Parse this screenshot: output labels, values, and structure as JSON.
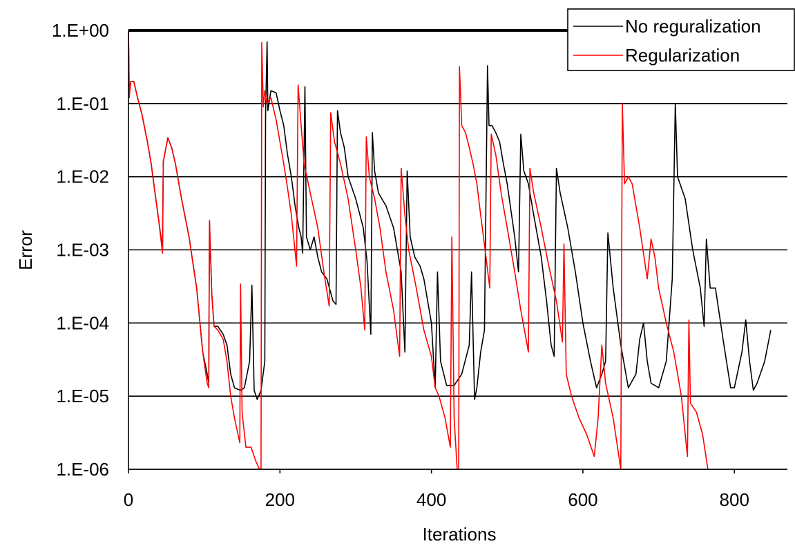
{
  "chart_data": {
    "type": "line",
    "title": "",
    "xlabel": "Iterations",
    "ylabel": "Error",
    "xlim": [
      0,
      870
    ],
    "ylim": [
      1e-06,
      1
    ],
    "yscale": "log",
    "x_ticks": [
      0,
      200,
      400,
      600,
      800
    ],
    "x_tick_labels": [
      "0",
      "200",
      "400",
      "600",
      "800"
    ],
    "y_ticks": [
      1,
      0.1,
      0.01,
      0.001,
      0.0001,
      1e-05,
      1e-06
    ],
    "y_tick_labels": [
      "1.E+00",
      "1.E-01",
      "1.E-02",
      "1.E-03",
      "1.E-04",
      "1.E-05",
      "1.E-06"
    ],
    "grid": "horizontal",
    "legend_position": "top-right",
    "colors": {
      "no_regularization": "#000000",
      "regularization": "#ff0000",
      "grid": "#000000",
      "background": "#ffffff"
    },
    "series": [
      {
        "name": "No reguralization",
        "color": "#000000",
        "points": [
          [
            0,
            1
          ],
          [
            1,
            0.15
          ],
          [
            3,
            0.2
          ],
          [
            7,
            0.2
          ],
          [
            12,
            0.12
          ],
          [
            18,
            0.07
          ],
          [
            25,
            0.03
          ],
          [
            30,
            0.015
          ],
          [
            35,
            0.006
          ],
          [
            40,
            0.0025
          ],
          [
            45,
            0.001
          ],
          [
            46,
            0.016
          ],
          [
            52,
            0.034
          ],
          [
            57,
            0.025
          ],
          [
            62,
            0.015
          ],
          [
            70,
            0.005
          ],
          [
            80,
            0.0015
          ],
          [
            90,
            0.0003
          ],
          [
            98,
            4e-05
          ],
          [
            104,
            2e-05
          ],
          [
            106,
            1.5e-05
          ],
          [
            107,
            0.0025
          ],
          [
            110,
            0.00025
          ],
          [
            113,
            9e-05
          ],
          [
            118,
            9e-05
          ],
          [
            125,
            7e-05
          ],
          [
            130,
            5e-05
          ],
          [
            135,
            2e-05
          ],
          [
            140,
            1.3e-05
          ],
          [
            148,
            1.2e-05
          ],
          [
            153,
            1.3e-05
          ],
          [
            160,
            3e-05
          ],
          [
            163,
            0.00033
          ],
          [
            166,
            1.2e-05
          ],
          [
            170,
            9e-06
          ],
          [
            175,
            1.2e-05
          ],
          [
            180,
            3e-05
          ],
          [
            181,
            0.07
          ],
          [
            183,
            0.7
          ],
          [
            184,
            0.08
          ],
          [
            188,
            0.15
          ],
          [
            195,
            0.14
          ],
          [
            200,
            0.08
          ],
          [
            205,
            0.05
          ],
          [
            210,
            0.02
          ],
          [
            215,
            0.01
          ],
          [
            220,
            0.004
          ],
          [
            225,
            0.002
          ],
          [
            228,
            0.0015
          ],
          [
            230,
            0.0009
          ],
          [
            233,
            0.17
          ],
          [
            235,
            0.0015
          ],
          [
            240,
            0.001
          ],
          [
            245,
            0.0015
          ],
          [
            250,
            0.0008
          ],
          [
            255,
            0.0005
          ],
          [
            262,
            0.0004
          ],
          [
            270,
            0.0002
          ],
          [
            274,
            0.00018
          ],
          [
            276,
            0.08
          ],
          [
            280,
            0.04
          ],
          [
            285,
            0.025
          ],
          [
            290,
            0.01
          ],
          [
            300,
            0.005
          ],
          [
            310,
            0.002
          ],
          [
            315,
            0.0007
          ],
          [
            320,
            7e-05
          ],
          [
            322,
            0.04
          ],
          [
            325,
            0.012
          ],
          [
            330,
            0.006
          ],
          [
            340,
            0.004
          ],
          [
            350,
            0.002
          ],
          [
            360,
            0.0005
          ],
          [
            365,
            4e-05
          ],
          [
            368,
            0.012
          ],
          [
            372,
            0.0015
          ],
          [
            378,
            0.0008
          ],
          [
            385,
            0.0006
          ],
          [
            390,
            0.0004
          ],
          [
            400,
            0.0001
          ],
          [
            405,
            1.3e-05
          ],
          [
            408,
            0.0005
          ],
          [
            412,
            3e-05
          ],
          [
            420,
            1.4e-05
          ],
          [
            430,
            1.4e-05
          ],
          [
            440,
            2e-05
          ],
          [
            450,
            5e-05
          ],
          [
            453,
            0.0005
          ],
          [
            457,
            9e-06
          ],
          [
            460,
            1.3e-05
          ],
          [
            465,
            4e-05
          ],
          [
            470,
            8e-05
          ],
          [
            472,
            0.005
          ],
          [
            474,
            0.33
          ],
          [
            476,
            0.05
          ],
          [
            480,
            0.05
          ],
          [
            485,
            0.04
          ],
          [
            490,
            0.03
          ],
          [
            495,
            0.015
          ],
          [
            500,
            0.008
          ],
          [
            510,
            0.0015
          ],
          [
            515,
            0.0005
          ],
          [
            518,
            0.038
          ],
          [
            522,
            0.012
          ],
          [
            528,
            0.008
          ],
          [
            535,
            0.003
          ],
          [
            545,
            0.0008
          ],
          [
            552,
            0.0002
          ],
          [
            558,
            5e-05
          ],
          [
            562,
            3.5e-05
          ],
          [
            565,
            0.013
          ],
          [
            570,
            0.006
          ],
          [
            580,
            0.002
          ],
          [
            590,
            0.0005
          ],
          [
            600,
            0.0001
          ],
          [
            610,
            3e-05
          ],
          [
            618,
            1.3e-05
          ],
          [
            625,
            2e-05
          ],
          [
            630,
            3e-05
          ],
          [
            633,
            0.0017
          ],
          [
            640,
            0.0003
          ],
          [
            650,
            5e-05
          ],
          [
            660,
            1.3e-05
          ],
          [
            670,
            2e-05
          ],
          [
            675,
            6e-05
          ],
          [
            680,
            0.0001
          ],
          [
            685,
            3e-05
          ],
          [
            690,
            1.5e-05
          ],
          [
            700,
            1.3e-05
          ],
          [
            710,
            3e-05
          ],
          [
            718,
            0.0004
          ],
          [
            722,
            0.1
          ],
          [
            725,
            0.01
          ],
          [
            735,
            0.005
          ],
          [
            745,
            0.001
          ],
          [
            755,
            0.0003
          ],
          [
            760,
            9e-05
          ],
          [
            763,
            0.0014
          ],
          [
            768,
            0.0003
          ],
          [
            775,
            0.0003
          ],
          [
            785,
            6e-05
          ],
          [
            795,
            1.3e-05
          ],
          [
            800,
            1.3e-05
          ],
          [
            810,
            4e-05
          ],
          [
            815,
            0.00011
          ],
          [
            820,
            3e-05
          ],
          [
            825,
            1.2e-05
          ],
          [
            830,
            1.5e-05
          ],
          [
            840,
            3e-05
          ],
          [
            848,
            8e-05
          ]
        ]
      },
      {
        "name": "Regularization",
        "color": "#ff0000",
        "points": [
          [
            0,
            1
          ],
          [
            1,
            0.12
          ],
          [
            3,
            0.2
          ],
          [
            7,
            0.2
          ],
          [
            12,
            0.12
          ],
          [
            18,
            0.07
          ],
          [
            25,
            0.03
          ],
          [
            30,
            0.015
          ],
          [
            35,
            0.006
          ],
          [
            40,
            0.0025
          ],
          [
            45,
            0.0009
          ],
          [
            46,
            0.016
          ],
          [
            52,
            0.034
          ],
          [
            57,
            0.025
          ],
          [
            62,
            0.015
          ],
          [
            70,
            0.005
          ],
          [
            80,
            0.0015
          ],
          [
            90,
            0.0003
          ],
          [
            98,
            4e-05
          ],
          [
            104,
            1.5e-05
          ],
          [
            106,
            1.3e-05
          ],
          [
            107,
            0.0025
          ],
          [
            110,
            0.00025
          ],
          [
            113,
            9e-05
          ],
          [
            118,
            8e-05
          ],
          [
            125,
            6e-05
          ],
          [
            130,
            3e-05
          ],
          [
            135,
            1e-05
          ],
          [
            140,
            5e-06
          ],
          [
            147,
            2.3e-06
          ],
          [
            148,
            0.00034
          ],
          [
            150,
            6e-06
          ],
          [
            155,
            2e-06
          ],
          [
            162,
            2e-06
          ],
          [
            168,
            1.3e-06
          ],
          [
            173,
            1e-06
          ],
          [
            175,
            1e-06
          ],
          [
            176,
            0.68
          ],
          [
            178,
            0.09
          ],
          [
            180,
            0.15
          ],
          [
            183,
            0.1
          ],
          [
            188,
            0.12
          ],
          [
            195,
            0.06
          ],
          [
            200,
            0.03
          ],
          [
            205,
            0.015
          ],
          [
            210,
            0.007
          ],
          [
            215,
            0.003
          ],
          [
            222,
            0.0006
          ],
          [
            224,
            0.18
          ],
          [
            228,
            0.05
          ],
          [
            232,
            0.015
          ],
          [
            240,
            0.006
          ],
          [
            250,
            0.002
          ],
          [
            258,
            0.0005
          ],
          [
            265,
            0.00017
          ],
          [
            267,
            0.075
          ],
          [
            272,
            0.03
          ],
          [
            280,
            0.015
          ],
          [
            290,
            0.005
          ],
          [
            300,
            0.001
          ],
          [
            307,
            0.0003
          ],
          [
            312,
            8e-05
          ],
          [
            314,
            0.035
          ],
          [
            318,
            0.01
          ],
          [
            325,
            0.005
          ],
          [
            332,
            0.002
          ],
          [
            340,
            0.0005
          ],
          [
            350,
            0.00015
          ],
          [
            358,
            3.5e-05
          ],
          [
            360,
            0.013
          ],
          [
            365,
            0.003
          ],
          [
            370,
            0.001
          ],
          [
            380,
            0.0003
          ],
          [
            390,
            8e-05
          ],
          [
            400,
            3.5e-05
          ],
          [
            405,
            1.3e-05
          ],
          [
            410,
            1e-05
          ],
          [
            418,
            5e-06
          ],
          [
            425,
            2e-06
          ],
          [
            427,
            0.0015
          ],
          [
            430,
            5e-06
          ],
          [
            434,
            1e-06
          ],
          [
            436,
            6e-07
          ],
          [
            437,
            0.32
          ],
          [
            440,
            0.05
          ],
          [
            445,
            0.04
          ],
          [
            450,
            0.025
          ],
          [
            455,
            0.015
          ],
          [
            460,
            0.008
          ],
          [
            465,
            0.003
          ],
          [
            472,
            0.0008
          ],
          [
            477,
            0.0003
          ],
          [
            479,
            0.038
          ],
          [
            485,
            0.02
          ],
          [
            492,
            0.006
          ],
          [
            500,
            0.002
          ],
          [
            510,
            0.0005
          ],
          [
            518,
            0.00015
          ],
          [
            525,
            6e-05
          ],
          [
            528,
            4e-05
          ],
          [
            530,
            0.013
          ],
          [
            535,
            0.006
          ],
          [
            545,
            0.002
          ],
          [
            555,
            0.0006
          ],
          [
            565,
            0.0002
          ],
          [
            573,
            5.5e-05
          ],
          [
            575,
            0.0012
          ],
          [
            578,
            2e-05
          ],
          [
            585,
            1e-05
          ],
          [
            595,
            5e-06
          ],
          [
            605,
            3e-06
          ],
          [
            615,
            1.5e-06
          ],
          [
            620,
            5e-06
          ],
          [
            625,
            5e-05
          ],
          [
            630,
            1.5e-05
          ],
          [
            640,
            5e-06
          ],
          [
            650,
            1e-06
          ],
          [
            652,
            0.1
          ],
          [
            655,
            0.008
          ],
          [
            660,
            0.01
          ],
          [
            665,
            0.008
          ],
          [
            675,
            0.002
          ],
          [
            685,
            0.0004
          ],
          [
            690,
            0.0014
          ],
          [
            695,
            0.0008
          ],
          [
            700,
            0.0003
          ],
          [
            710,
            0.0001
          ],
          [
            720,
            4e-05
          ],
          [
            730,
            1e-05
          ],
          [
            735,
            3e-06
          ],
          [
            738,
            1.5e-06
          ],
          [
            740,
            0.00011
          ],
          [
            742,
            8e-06
          ],
          [
            750,
            6e-06
          ],
          [
            758,
            3e-06
          ],
          [
            765,
            1e-06
          ],
          [
            770,
            6e-07
          ]
        ]
      }
    ]
  }
}
